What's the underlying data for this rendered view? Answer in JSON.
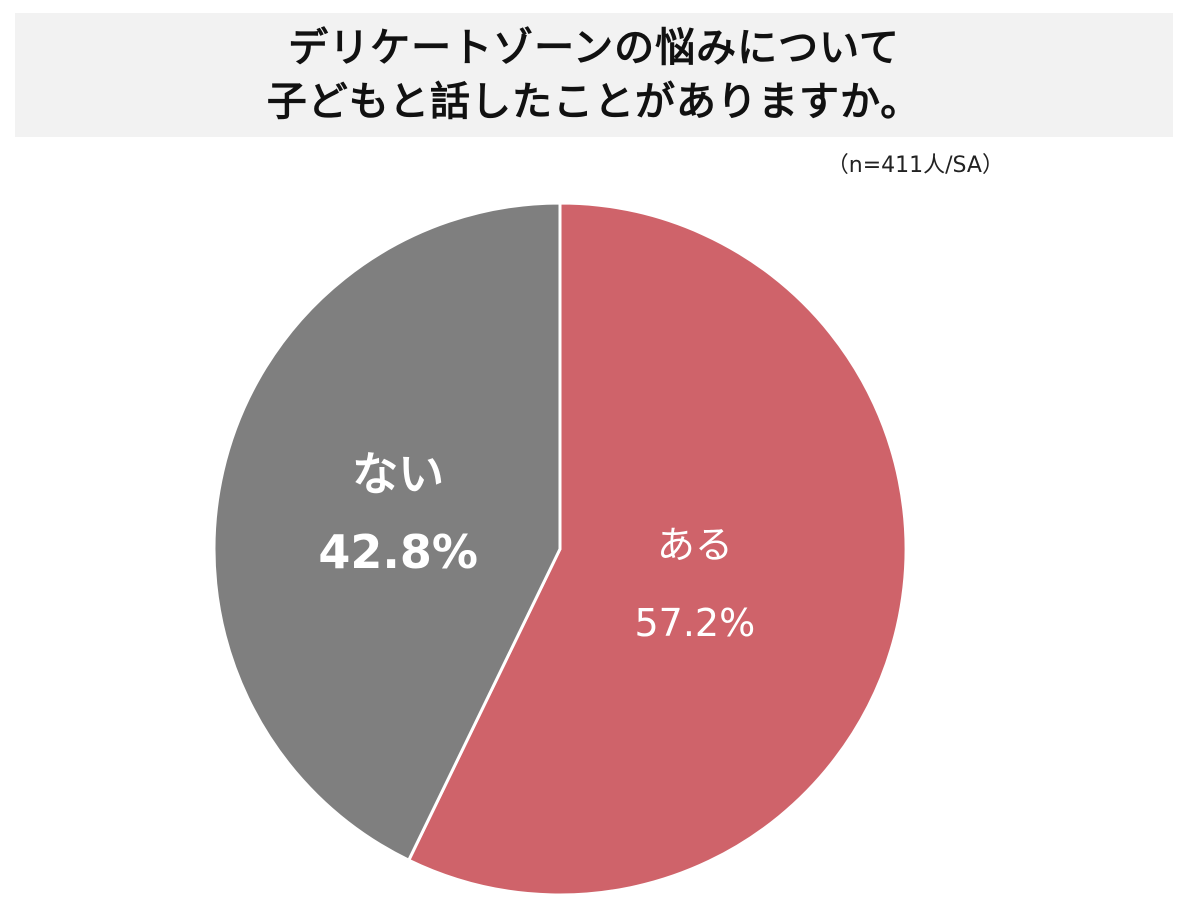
{
  "title": {
    "line1": "デリケートゾーンの悩みについて",
    "line2": "子どもと話したことがありますか。"
  },
  "sample_note": "（n=411人/SA）",
  "colors": {
    "title_background": "#f2f2f2",
    "yes_slice": "#cf636a",
    "no_slice": "#7f7f7f",
    "slice_border": "#ffffff",
    "label_text": "#ffffff"
  },
  "chart_data": {
    "type": "pie",
    "title": "デリケートゾーンの悩みについて子どもと話したことがありますか。",
    "n": 411,
    "start_angle_deg": 0,
    "direction": "clockwise",
    "slices": [
      {
        "label": "ある",
        "value": 57.2,
        "value_label": "57.2%",
        "color": "#cf636a"
      },
      {
        "label": "ない",
        "value": 42.8,
        "value_label": "42.8%",
        "color": "#7f7f7f"
      }
    ]
  }
}
